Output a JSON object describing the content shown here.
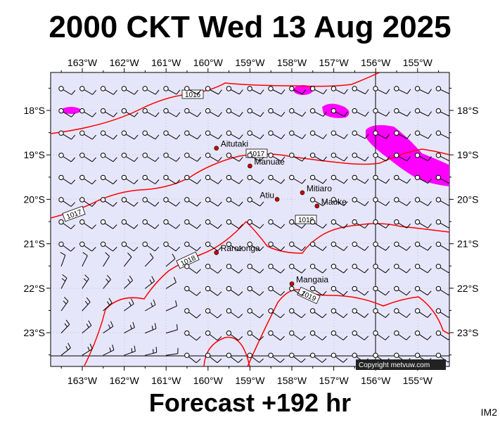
{
  "title": "2000 CKT Wed 13 Aug 2025",
  "subtitle": "Forecast +192 hr",
  "corner_label": "IM2",
  "copyright": "Copyright metvuw.com",
  "colors": {
    "ocean": "#e6e6fa",
    "isobar": "#ff0000",
    "rain": "#ff00ff",
    "island": "#cc0000"
  },
  "lon_labels": [
    "163°W",
    "162°W",
    "161°W",
    "160°W",
    "159°W",
    "158°W",
    "157°W",
    "156°W",
    "155°W"
  ],
  "lat_labels": [
    "18°S",
    "19°S",
    "20°S",
    "21°S",
    "22°S",
    "23°S"
  ],
  "islands": [
    {
      "name": "Aitutaki",
      "lon": -159.8,
      "lat": -18.85
    },
    {
      "name": "Manuae",
      "lon": -159.0,
      "lat": -19.25
    },
    {
      "name": "Mitiaro",
      "lon": -157.75,
      "lat": -19.85
    },
    {
      "name": "Atiu",
      "lon": -158.35,
      "lat": -20.0
    },
    {
      "name": "Mauke",
      "lon": -157.4,
      "lat": -20.15
    },
    {
      "name": "Rarotonga",
      "lon": -159.8,
      "lat": -21.2
    },
    {
      "name": "Mangaia",
      "lon": -158.0,
      "lat": -21.9
    }
  ],
  "isobar_labels": [
    "1016",
    "1017",
    "1017",
    "1018",
    "1018",
    "1019"
  ]
}
